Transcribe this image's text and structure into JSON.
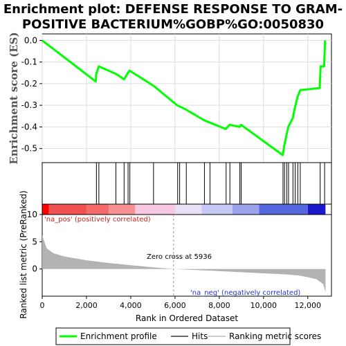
{
  "chart_data": {
    "type": "line",
    "title_lines": [
      "Enrichment plot: DEFENSE RESPONSE TO GRAM-",
      "POSITIVE BACTERIUM%GOBP%GO:0050830"
    ],
    "es_panel": {
      "ylabel": "Enrichment score (ES)",
      "yticks": [
        0.0,
        -0.1,
        -0.2,
        -0.3,
        -0.4,
        -0.5
      ],
      "ylim": [
        -0.565,
        0.03
      ],
      "xlim": [
        0,
        13070
      ]
    },
    "series": [
      {
        "name": "Enrichment profile",
        "color": "#00ff00",
        "x": [
          0,
          2420,
          2440,
          2560,
          3330,
          3700,
          3870,
          3950,
          5030,
          6100,
          6200,
          6500,
          7330,
          7580,
          8290,
          8470,
          8920,
          8980,
          10870,
          10930,
          11030,
          11120,
          11320,
          11420,
          11540,
          11660,
          12540,
          12580,
          12740,
          12780
        ],
        "y": [
          0.0,
          -0.19,
          -0.155,
          -0.12,
          -0.155,
          -0.18,
          -0.15,
          -0.14,
          -0.21,
          -0.3,
          -0.305,
          -0.32,
          -0.37,
          -0.38,
          -0.41,
          -0.39,
          -0.4,
          -0.39,
          -0.53,
          -0.49,
          -0.44,
          -0.4,
          -0.36,
          -0.31,
          -0.26,
          -0.23,
          -0.22,
          -0.12,
          -0.12,
          0.0
        ]
      }
    ],
    "hits": [
      2450,
      2560,
      3330,
      3700,
      3880,
      3960,
      5030,
      6120,
      6210,
      6510,
      7330,
      7580,
      8310,
      8480,
      8930,
      8990,
      10880,
      10950,
      11050,
      11130,
      11330,
      11430,
      11550,
      11660,
      12560,
      12760
    ],
    "ranked_metric_panel": {
      "ylabel": "Ranked list metric (PreRanked)",
      "yticks": [
        10,
        5,
        0
      ],
      "ylim": [
        -5,
        10
      ],
      "metric_profile": {
        "x": [
          0,
          200,
          500,
          1000,
          2000,
          3000,
          4000,
          5000,
          5936,
          7000,
          8000,
          9000,
          10000,
          11000,
          11600,
          12000,
          12400,
          12700,
          12800
        ],
        "y": [
          6.2,
          3.8,
          2.9,
          2.3,
          1.6,
          1.1,
          0.7,
          0.3,
          0.0,
          -0.2,
          -0.4,
          -0.6,
          -0.8,
          -1.0,
          -1.2,
          -1.5,
          -1.9,
          -2.8,
          -4.3
        ]
      },
      "zero_cross_text": "Zero cross at 5936",
      "zero_cross_x": 5936,
      "pos_label": "'na_pos' (positively correlated)",
      "neg_label": "'na_neg' (negatively correlated)"
    },
    "xaxis": {
      "label": "Rank in Ordered Dataset",
      "ticks": [
        0,
        2000,
        4000,
        6000,
        8000,
        10000,
        12000
      ],
      "tick_labels": [
        "0",
        "2,000",
        "4,000",
        "6,000",
        "8,000",
        "10,000",
        "12,000"
      ]
    },
    "color_bar": [
      {
        "from": 0,
        "to": 300,
        "color": "#ff0000"
      },
      {
        "from": 300,
        "to": 2000,
        "color": "#f05050"
      },
      {
        "from": 2000,
        "to": 3000,
        "color": "#f56b6b"
      },
      {
        "from": 3000,
        "to": 4200,
        "color": "#f79090"
      },
      {
        "from": 4200,
        "to": 6000,
        "color": "#f7c8e2"
      },
      {
        "from": 6000,
        "to": 7200,
        "color": "#e8e0f5"
      },
      {
        "from": 7200,
        "to": 8600,
        "color": "#c4c8f2"
      },
      {
        "from": 8600,
        "to": 9800,
        "color": "#9aa3ec"
      },
      {
        "from": 9800,
        "to": 12000,
        "color": "#5568dd"
      },
      {
        "from": 12000,
        "to": 12800,
        "color": "#1a1acc"
      }
    ],
    "legend": [
      {
        "label": "Enrichment profile",
        "color": "#00ff00",
        "kind": "line"
      },
      {
        "label": "Hits",
        "color": "#666666",
        "kind": "line"
      },
      {
        "label": "Ranking metric scores",
        "color": "#cccccc",
        "kind": "line"
      }
    ]
  }
}
